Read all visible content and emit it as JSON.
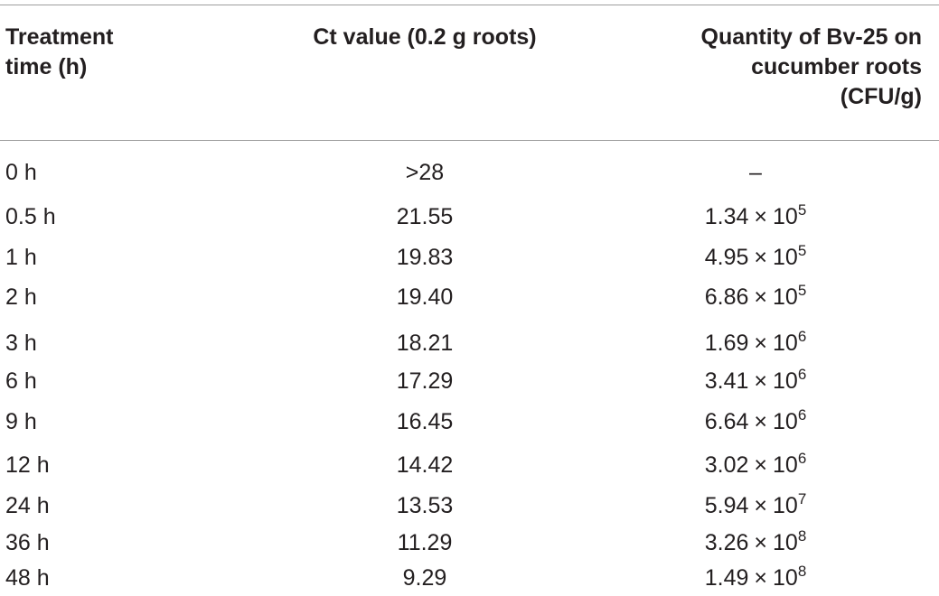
{
  "table": {
    "headers": [
      [
        "Treatment",
        "time (h)"
      ],
      [
        "Ct value (0.2 g roots)"
      ],
      [
        "Quantity of Bv-25 on",
        "cucumber roots",
        "(CFU/g)"
      ]
    ],
    "rows": [
      {
        "time": "0 h",
        "ct": ">28",
        "mantissa": "–",
        "times": "",
        "exponent": ""
      },
      {
        "time": "0.5 h",
        "ct": "21.55",
        "mantissa": "1.34",
        "times": "×",
        "exponent": "5"
      },
      {
        "time": "1 h",
        "ct": "19.83",
        "mantissa": "4.95",
        "times": "×",
        "exponent": "5"
      },
      {
        "time": "2 h",
        "ct": "19.40",
        "mantissa": "6.86",
        "times": "×",
        "exponent": "5"
      },
      {
        "time": "3 h",
        "ct": "18.21",
        "mantissa": "1.69",
        "times": "×",
        "exponent": "6"
      },
      {
        "time": "6 h",
        "ct": "17.29",
        "mantissa": "3.41",
        "times": "×",
        "exponent": "6"
      },
      {
        "time": "9 h",
        "ct": "16.45",
        "mantissa": "6.64",
        "times": "×",
        "exponent": "6"
      },
      {
        "time": "12 h",
        "ct": "14.42",
        "mantissa": "3.02",
        "times": "×",
        "exponent": "6"
      },
      {
        "time": "24 h",
        "ct": "13.53",
        "mantissa": "5.94",
        "times": "×",
        "exponent": "7"
      },
      {
        "time": "36 h",
        "ct": "11.29",
        "mantissa": "3.26",
        "times": "×",
        "exponent": "8"
      },
      {
        "time": "48 h",
        "ct": "9.29",
        "mantissa": "1.49",
        "times": "×",
        "exponent": "8"
      }
    ]
  }
}
